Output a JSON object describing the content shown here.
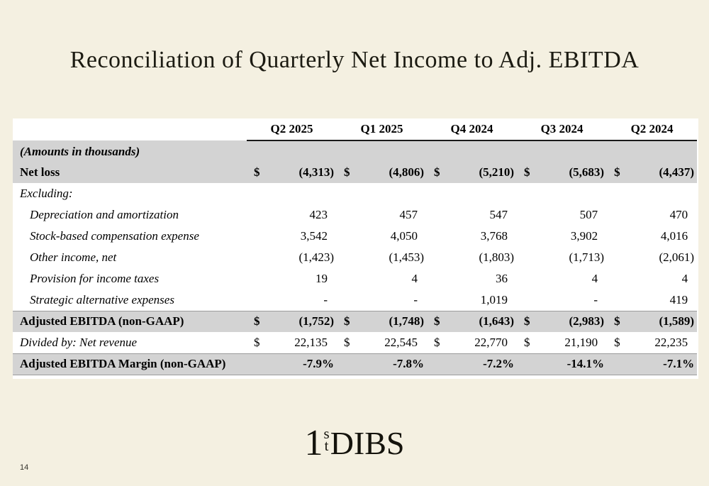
{
  "page": {
    "title": "Reconciliation of Quarterly Net Income to Adj. EBITDA",
    "page_number": "14"
  },
  "logo": {
    "one": "1",
    "sup": "s",
    "sub": "t",
    "rest": "DIBS"
  },
  "colors": {
    "background": "#f4f0e1",
    "panel": "#ffffff",
    "band_gray": "#d3d3d3",
    "text": "#000000",
    "header_rule": "#1a1a1a"
  },
  "table": {
    "currency_symbol": "$",
    "note": "(Amounts in thousands)",
    "columns": [
      "Q2 2025",
      "Q1 2025",
      "Q4 2024",
      "Q3 2024",
      "Q2 2024"
    ],
    "rows": [
      {
        "label": "Net loss",
        "values": [
          "(4,313)",
          "(4,806)",
          "(5,210)",
          "(5,683)",
          "(4,437)"
        ]
      },
      {
        "label": "Excluding:",
        "values": [
          "",
          "",
          "",
          "",
          ""
        ]
      },
      {
        "label": "Depreciation and amortization",
        "values": [
          "423",
          "457",
          "547",
          "507",
          "470"
        ]
      },
      {
        "label": "Stock-based compensation expense",
        "values": [
          "3,542",
          "4,050",
          "3,768",
          "3,902",
          "4,016"
        ]
      },
      {
        "label": "Other income, net",
        "values": [
          "(1,423)",
          "(1,453)",
          "(1,803)",
          "(1,713)",
          "(2,061)"
        ]
      },
      {
        "label": "Provision for income taxes",
        "values": [
          "19",
          "4",
          "36",
          "4",
          "4"
        ]
      },
      {
        "label": "Strategic alternative expenses",
        "values": [
          "-",
          "-",
          "1,019",
          "-",
          "419"
        ]
      },
      {
        "label": "Adjusted EBITDA (non-GAAP)",
        "values": [
          "(1,752)",
          "(1,748)",
          "(1,643)",
          "(2,983)",
          "(1,589)"
        ]
      },
      {
        "label": "Divided by: Net revenue",
        "values": [
          "22,135",
          "22,545",
          "22,770",
          "21,190",
          "22,235"
        ]
      },
      {
        "label": "Adjusted EBITDA Margin (non-GAAP)",
        "values": [
          "-7.9%",
          "-7.8%",
          "-7.2%",
          "-14.1%",
          "-7.1%"
        ]
      }
    ]
  }
}
